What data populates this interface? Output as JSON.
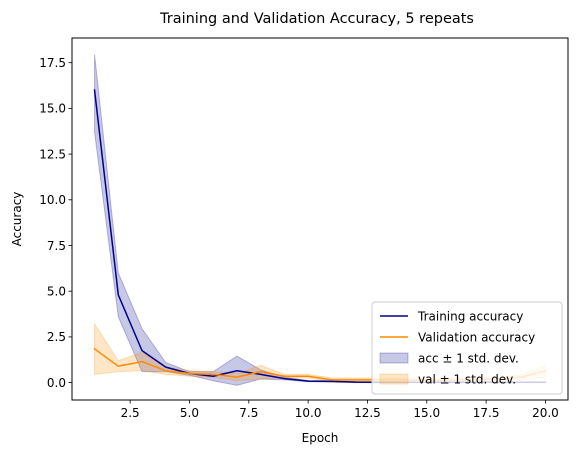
{
  "chart_data": {
    "type": "line",
    "title": "Training and Validation Accuracy, 5 repeats",
    "xlabel": "Epoch",
    "ylabel": "Accuracy",
    "xlim": [
      0.05,
      20.95
    ],
    "ylim": [
      -0.95,
      18.85
    ],
    "xticks": [
      2.5,
      5.0,
      7.5,
      10.0,
      12.5,
      15.0,
      17.5,
      20.0
    ],
    "xtick_labels": [
      "2.5",
      "5.0",
      "7.5",
      "10.0",
      "12.5",
      "15.0",
      "17.5",
      "20.0"
    ],
    "yticks": [
      0.0,
      2.5,
      5.0,
      7.5,
      10.0,
      12.5,
      15.0,
      17.5
    ],
    "ytick_labels": [
      "0.0",
      "2.5",
      "5.0",
      "7.5",
      "10.0",
      "12.5",
      "15.0",
      "17.5"
    ],
    "grid": false,
    "legend_position": "lower-right",
    "x": [
      1,
      2,
      3,
      4,
      5,
      6,
      7,
      8,
      9,
      10,
      11,
      12,
      13,
      14,
      15,
      16,
      17,
      18,
      19,
      20
    ],
    "series": [
      {
        "name": "Training accuracy",
        "color": "#00008b",
        "values": [
          16.0,
          4.8,
          1.75,
          0.85,
          0.5,
          0.35,
          0.65,
          0.45,
          0.22,
          0.08,
          0.07,
          0.03,
          0.02,
          0.02,
          0.02,
          0.02,
          0.02,
          0.02,
          0.02,
          0.02
        ]
      },
      {
        "name": "Validation accuracy",
        "color": "#ff8c00",
        "values": [
          1.85,
          0.9,
          1.15,
          0.65,
          0.5,
          0.45,
          0.3,
          0.6,
          0.35,
          0.35,
          0.15,
          0.15,
          0.15,
          0.15,
          0.12,
          0.15,
          0.15,
          0.2,
          0.3,
          0.65
        ]
      }
    ],
    "bands": [
      {
        "name": "acc ± 1 std. dev.",
        "color": "#00008b",
        "lower": [
          13.7,
          3.6,
          0.6,
          0.6,
          0.4,
          0.1,
          -0.15,
          0.2,
          0.15,
          0.05,
          0.03,
          0.0,
          0.0,
          0.0,
          0.0,
          0.0,
          0.0,
          0.0,
          0.0,
          0.0
        ],
        "upper": [
          17.95,
          6.0,
          2.95,
          1.1,
          0.6,
          0.6,
          1.45,
          0.7,
          0.3,
          0.12,
          0.1,
          0.06,
          0.04,
          0.04,
          0.04,
          0.04,
          0.04,
          0.04,
          0.04,
          0.04
        ]
      },
      {
        "name": "val ± 1 std. dev.",
        "color": "#ff8c00",
        "lower": [
          0.45,
          0.6,
          0.65,
          0.45,
          0.35,
          0.3,
          0.1,
          0.2,
          0.25,
          0.25,
          0.05,
          0.05,
          0.05,
          0.05,
          0.02,
          0.05,
          0.05,
          0.1,
          0.15,
          0.3
        ],
        "upper": [
          3.2,
          1.2,
          1.65,
          0.85,
          0.65,
          0.6,
          0.5,
          0.95,
          0.45,
          0.45,
          0.25,
          0.25,
          0.25,
          0.25,
          0.22,
          0.25,
          0.25,
          0.3,
          0.45,
          0.95
        ]
      }
    ]
  }
}
